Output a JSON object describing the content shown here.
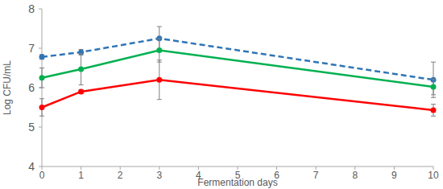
{
  "chart_data": {
    "type": "line",
    "x_label": "Fermentation days",
    "y_label": "Log CFU/mL",
    "x": [
      0,
      1,
      3,
      10
    ],
    "series": [
      {
        "color": "#2e75b6",
        "line_style": "dashed",
        "marker": "circle",
        "values": [
          6.78,
          6.9,
          7.25,
          6.2
        ],
        "errors": [
          0.06,
          0.07,
          0.3,
          0.45
        ]
      },
      {
        "color": "#00b050",
        "line_style": "solid",
        "marker": "circle",
        "values": [
          6.25,
          6.47,
          6.95,
          6.02
        ],
        "errors": [
          0.25,
          0.4,
          0.3,
          0.2
        ]
      },
      {
        "color": "#ff0000",
        "line_style": "solid",
        "marker": "circle",
        "values": [
          5.5,
          5.9,
          6.2,
          5.43
        ],
        "errors": [
          0.22,
          0.05,
          0.5,
          0.15
        ]
      }
    ],
    "xlim": [
      0,
      10
    ],
    "xticks": [
      0,
      1,
      2,
      3,
      4,
      5,
      6,
      7,
      8,
      9,
      10
    ],
    "ylim": [
      4,
      8
    ],
    "yticks": [
      4,
      5,
      6,
      7,
      8
    ],
    "grid": false
  }
}
